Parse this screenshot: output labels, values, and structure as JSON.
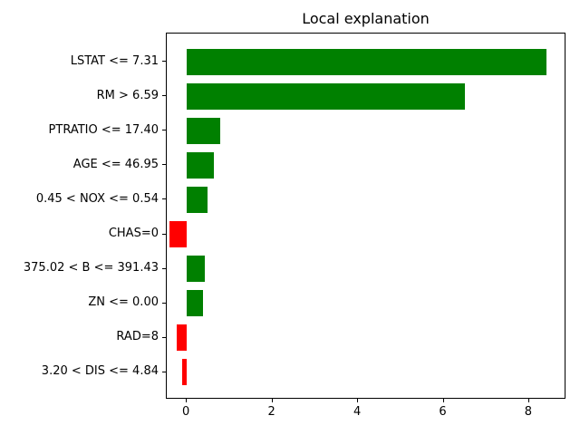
{
  "chart_data": {
    "type": "bar",
    "orientation": "horizontal",
    "title": "Local explanation",
    "categories": [
      "LSTAT <= 7.31",
      "RM > 6.59",
      "PTRATIO <= 17.40",
      "AGE <= 46.95",
      "0.45 < NOX <= 0.54",
      "CHAS=0",
      "375.02 < B <= 391.43",
      "ZN <= 0.00",
      "RAD=8",
      "3.20 < DIS <= 4.84"
    ],
    "values": [
      8.4,
      6.5,
      0.78,
      0.64,
      0.49,
      -0.41,
      0.41,
      0.38,
      -0.24,
      -0.12
    ],
    "bar_colors": [
      "green",
      "green",
      "green",
      "green",
      "green",
      "red",
      "green",
      "green",
      "red",
      "red"
    ],
    "positive_color": "#008000",
    "negative_color": "#ff0000",
    "xlabel": "",
    "ylabel": "",
    "xlim": [
      -0.47,
      8.87
    ],
    "x_ticks": [
      "0",
      "2",
      "4",
      "6",
      "8"
    ],
    "x_tick_values": [
      0,
      2,
      4,
      6,
      8
    ],
    "grid": false,
    "legend": null
  }
}
